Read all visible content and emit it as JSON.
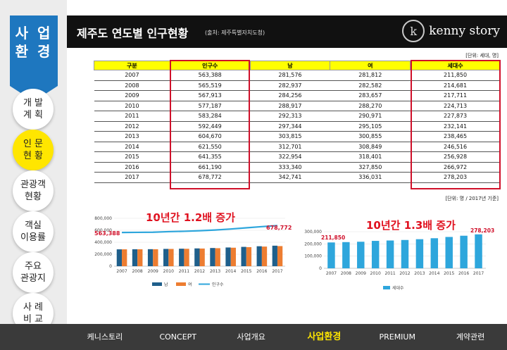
{
  "sidebar": {
    "tab_title": "사 업\n환 경",
    "items": [
      {
        "label": "개 발\n계 획",
        "active": false
      },
      {
        "label": "인 문\n현 황",
        "active": true
      },
      {
        "label": "관광객\n현황",
        "active": false
      },
      {
        "label": "객실\n이용률",
        "active": false
      },
      {
        "label": "주요\n관광지",
        "active": false
      },
      {
        "label": "사 례\n비 교",
        "active": false
      }
    ]
  },
  "header": {
    "title": "제주도 연도별 인구현황",
    "source": "(출처: 제주특별자치도청)",
    "logo_text": "kenny story",
    "logo_mark": "k"
  },
  "table": {
    "unit_top": "[단위: 세대, 명]",
    "unit_bottom": "[단위: 명 / 2017년 기준]",
    "headers": [
      "구분",
      "인구수",
      "남",
      "여",
      "세대수"
    ],
    "rows": [
      [
        "2007",
        "563,388",
        "281,576",
        "281,812",
        "211,850"
      ],
      [
        "2008",
        "565,519",
        "282,937",
        "282,582",
        "214,681"
      ],
      [
        "2009",
        "567,913",
        "284,256",
        "283,657",
        "217,711"
      ],
      [
        "2010",
        "577,187",
        "288,917",
        "288,270",
        "224,713"
      ],
      [
        "2011",
        "583,284",
        "292,313",
        "290,971",
        "227,873"
      ],
      [
        "2012",
        "592,449",
        "297,344",
        "295,105",
        "232,141"
      ],
      [
        "2013",
        "604,670",
        "303,815",
        "300,855",
        "238,465"
      ],
      [
        "2014",
        "621,550",
        "312,701",
        "308,849",
        "246,516"
      ],
      [
        "2015",
        "641,355",
        "322,954",
        "318,401",
        "256,928"
      ],
      [
        "2016",
        "661,190",
        "333,340",
        "327,850",
        "266,972"
      ],
      [
        "2017",
        "678,772",
        "342,741",
        "336,031",
        "278,203"
      ]
    ]
  },
  "annotations": {
    "left": "10년간 1.2배 증가",
    "right": "10년간 1.3배 증가"
  },
  "colors": {
    "male": "#1f5f8b",
    "female": "#ed7d31",
    "population": "#2ea6dc",
    "households": "#2ea6dc"
  },
  "chart_data": [
    {
      "type": "bar",
      "categories": [
        "2007",
        "2008",
        "2009",
        "2010",
        "2011",
        "2012",
        "2013",
        "2014",
        "2015",
        "2016",
        "2017"
      ],
      "ylim": [
        0,
        800000
      ],
      "yticks": [
        "0",
        "200,000",
        "400,000",
        "600,000",
        "800,000"
      ],
      "series": [
        {
          "name": "남",
          "type": "bar",
          "values": [
            281576,
            282937,
            284256,
            288917,
            292313,
            297344,
            303815,
            312701,
            322954,
            333340,
            342741
          ]
        },
        {
          "name": "여",
          "type": "bar",
          "values": [
            281812,
            282582,
            283657,
            288270,
            290971,
            295105,
            300855,
            308849,
            318401,
            327850,
            336031
          ]
        },
        {
          "name": "인구수",
          "type": "line",
          "values": [
            563388,
            565519,
            567913,
            577187,
            583284,
            592449,
            604670,
            621550,
            641355,
            661190,
            678772
          ]
        }
      ],
      "data_labels": [
        "563,388",
        "678,772"
      ],
      "legend": "bottom"
    },
    {
      "type": "bar",
      "categories": [
        "2007",
        "2008",
        "2009",
        "2010",
        "2011",
        "2012",
        "2013",
        "2014",
        "2015",
        "2016",
        "2017"
      ],
      "ylim": [
        0,
        300000
      ],
      "yticks": [
        "0",
        "100,000",
        "200,000",
        "300,000"
      ],
      "series": [
        {
          "name": "세대수",
          "values": [
            211850,
            214681,
            217711,
            224713,
            227873,
            232141,
            238465,
            246516,
            256928,
            266972,
            278203
          ]
        }
      ],
      "data_labels": [
        "211,850",
        "278,203"
      ],
      "legend": "bottom"
    }
  ],
  "bottom_nav": {
    "items": [
      {
        "label": "케니스토리",
        "active": false
      },
      {
        "label": "CONCEPT",
        "active": false
      },
      {
        "label": "사업개요",
        "active": false
      },
      {
        "label": "사업환경",
        "active": true
      },
      {
        "label": "PREMIUM",
        "active": false
      },
      {
        "label": "계약관련",
        "active": false
      }
    ]
  }
}
